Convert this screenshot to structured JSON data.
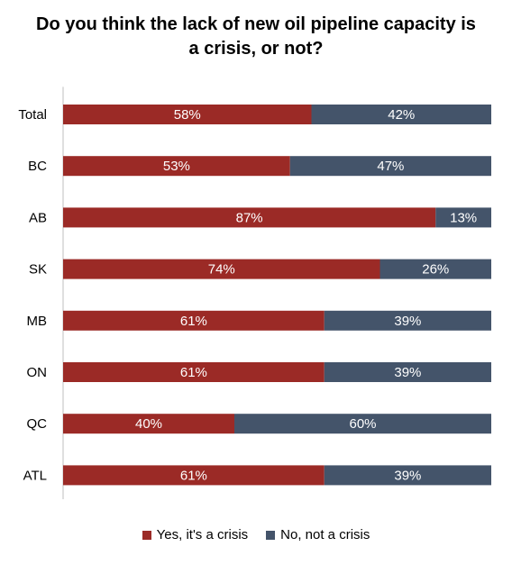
{
  "chart_data": {
    "type": "bar",
    "orientation": "horizontal",
    "stacked": true,
    "title": "Do you think the lack of new oil pipeline capacity is a crisis, or not?",
    "categories": [
      "Total",
      "BC",
      "AB",
      "SK",
      "MB",
      "ON",
      "QC",
      "ATL"
    ],
    "series": [
      {
        "name": "Yes, it's a crisis",
        "color": "#9b2a26",
        "values": [
          58,
          53,
          87,
          74,
          61,
          61,
          40,
          61
        ]
      },
      {
        "name": "No, not a crisis",
        "color": "#44546a",
        "values": [
          42,
          47,
          13,
          26,
          39,
          39,
          60,
          39
        ]
      }
    ],
    "value_suffix": "%",
    "xlim": [
      0,
      100
    ],
    "grid": false,
    "legend_position": "bottom"
  }
}
